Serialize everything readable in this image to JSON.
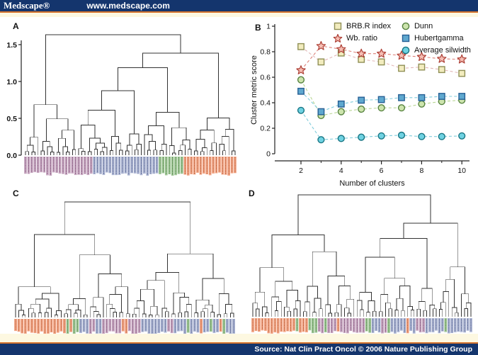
{
  "header": {
    "logo": "Medscape®",
    "url": "www.medscape.com"
  },
  "footer": {
    "source": "Source: Nat Clin Pract Oncol © 2006 Nature Publishing Group"
  },
  "colors": {
    "navy": "#14356d",
    "orange_rule": "#d4732c",
    "cream": "#fdf8e1",
    "dendrogram_line": "#333333",
    "axis_line": "#222222"
  },
  "strip_palette": {
    "P": {
      "bg": "#c9a7c2",
      "fg": "#4a2347"
    },
    "B": {
      "bg": "#aab3d2",
      "fg": "#2e3a66"
    },
    "G": {
      "bg": "#9fc795",
      "fg": "#2f5c2a"
    },
    "O": {
      "bg": "#f3a382",
      "fg": "#8a3d1e"
    }
  },
  "panels": {
    "a": {
      "label": "A",
      "axis_tick_labels": [
        "0.0",
        "0.5",
        "1.0",
        "1.5"
      ],
      "axis_tick_values": [
        0,
        0.5,
        1.0,
        1.5
      ],
      "leaf_groups": "PPPPPPPPPPPPPPPPPPPPPPBBBBBBBBBBBBBBBBBBBBBGGGGGGGGOOOOOOOOOOOOOOOOO"
    },
    "b": {
      "label": "B"
    },
    "c": {
      "label": "C",
      "leaf_groups": "OOOOOOOOOOOOOOOOGOGGBBBPPBBPPPPPPOOPPPPBBBBBBBBPPBBBBGBBBOBBGBBOGBBB"
    },
    "d": {
      "label": "D",
      "leaf_groups": "OOOOOOOOOOOOOOGOOOGGGPPGPPPOPPPPPPPPGGBBBPPGBBBBBOBBPPPBBBBBBGBBBBBBBB"
    }
  },
  "chart_data": {
    "type": "line",
    "title": "",
    "xlabel": "Number of clusters",
    "ylabel": "Cluster metric score",
    "x": [
      2,
      3,
      4,
      5,
      6,
      7,
      8,
      9,
      10
    ],
    "xlim": [
      1.2,
      10.5
    ],
    "ylim": [
      0,
      1
    ],
    "x_major_ticks": [
      2,
      4,
      6,
      8,
      10
    ],
    "x_minor_ticks": [
      3,
      5,
      7,
      9
    ],
    "y_ticks": [
      0,
      0.2,
      0.4,
      0.6,
      0.8,
      1
    ],
    "y_tick_labels": [
      "0",
      "0.2",
      "0.4",
      "0.6",
      "0.8",
      "1"
    ],
    "grid": false,
    "legend_position": "top-right",
    "line_style": "dashed",
    "series": [
      {
        "name": "BRB.R index",
        "marker": "square",
        "fill": "#f2ecbe",
        "stroke": "#8f8f55",
        "line": "#e2b6b6",
        "values": [
          0.84,
          0.72,
          0.79,
          0.74,
          0.72,
          0.67,
          0.68,
          0.66,
          0.63
        ]
      },
      {
        "name": "Wb. ratio",
        "marker": "star",
        "fill": "#f5beb4",
        "stroke": "#ad3f35",
        "line": "#dc8078",
        "values": [
          0.655,
          0.845,
          0.82,
          0.785,
          0.785,
          0.77,
          0.76,
          0.745,
          0.74
        ]
      },
      {
        "name": "Dunn",
        "marker": "circle",
        "fill": "#cde4ad",
        "stroke": "#56823f",
        "line": "#b8d694",
        "values": [
          0.58,
          0.3,
          0.33,
          0.35,
          0.36,
          0.36,
          0.39,
          0.41,
          0.42
        ]
      },
      {
        "name": "Hubertgamma",
        "marker": "square",
        "fill": "#5fa8cf",
        "stroke": "#265f94",
        "line": "#7fccdb",
        "values": [
          0.49,
          0.33,
          0.39,
          0.42,
          0.425,
          0.44,
          0.44,
          0.45,
          0.45
        ]
      },
      {
        "name": "Average silwidth",
        "marker": "circle",
        "fill": "#6fd2e2",
        "stroke": "#177482",
        "line": "#7fccdb",
        "values": [
          0.34,
          0.11,
          0.12,
          0.13,
          0.14,
          0.145,
          0.135,
          0.135,
          0.14
        ]
      }
    ]
  }
}
